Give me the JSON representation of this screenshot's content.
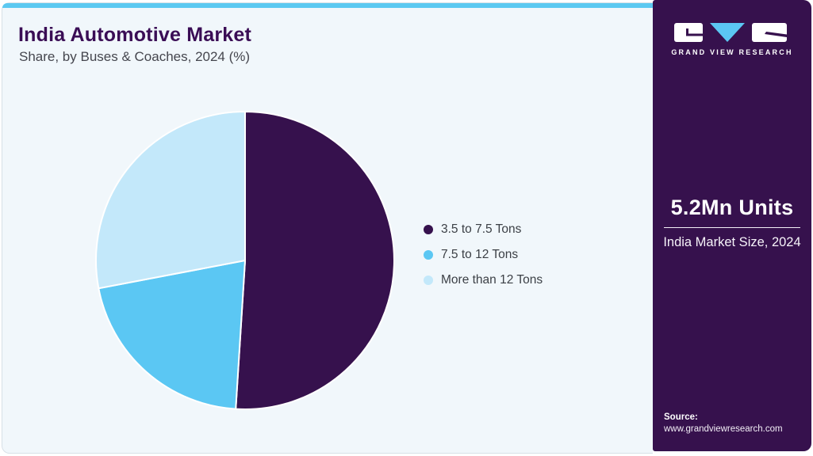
{
  "header": {
    "title": "India Automotive Market",
    "subtitle": "Share, by Buses & Coaches, 2024 (%)"
  },
  "chart_data": {
    "type": "pie",
    "title": "India Automotive Market Share, by Buses & Coaches, 2024 (%)",
    "labels": [
      "3.5 to 7.5 Tons",
      "7.5 to 12 Tons",
      "More than 12 Tons"
    ],
    "values": [
      51,
      21,
      28
    ],
    "unit": "%",
    "colors": [
      "#36114d",
      "#5bc7f3",
      "#c3e8fa"
    ],
    "start_angle_deg": 0,
    "direction": "clockwise",
    "legend_position": "right",
    "data_labels_shown": false
  },
  "sidebar": {
    "brand": {
      "logo_text": "GRAND VIEW RESEARCH"
    },
    "market_size": {
      "value": "5.2Mn Units",
      "caption": "India Market Size, 2024"
    },
    "source": {
      "label": "Source:",
      "url": "www.grandviewresearch.com"
    },
    "colors": {
      "background": "#36114d",
      "accent": "#5cc9f1"
    }
  }
}
